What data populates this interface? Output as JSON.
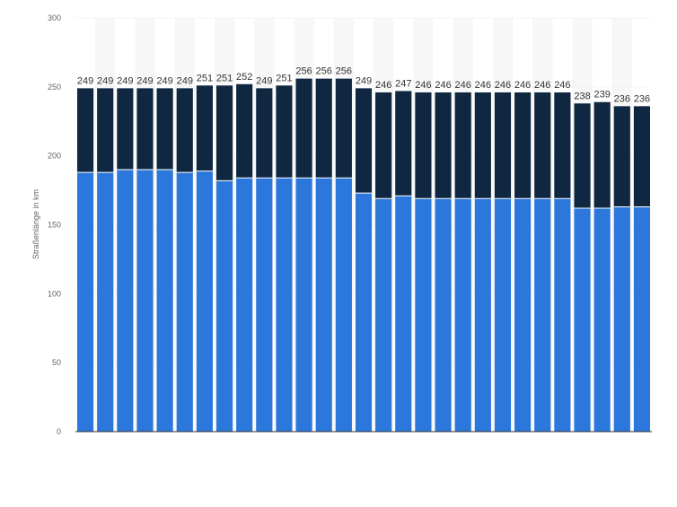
{
  "chart_data": {
    "type": "bar",
    "stacked": true,
    "title": "",
    "xlabel": "",
    "ylabel": "Straßenlänge in km",
    "ylim": [
      0,
      300
    ],
    "yticks": [
      0,
      50,
      100,
      150,
      200,
      250,
      300
    ],
    "grid": true,
    "legend": "none",
    "colors": {
      "lower": "#2b77db",
      "upper": "#0f2740",
      "band": "#f7f7f7",
      "grid": "#e6e6e6"
    },
    "series": [
      {
        "values": [
          188,
          188,
          190,
          190,
          190,
          188,
          189,
          182,
          184,
          184,
          184,
          184,
          184,
          184,
          173,
          169,
          171,
          169,
          169,
          169,
          169,
          169,
          169,
          169,
          169,
          162,
          162,
          163,
          163
        ]
      },
      {
        "values": [
          61,
          61,
          59,
          59,
          59,
          61,
          62,
          69,
          68,
          65,
          67,
          72,
          72,
          72,
          76,
          77,
          76,
          77,
          77,
          77,
          77,
          77,
          77,
          77,
          77,
          76,
          77,
          73,
          73
        ]
      }
    ],
    "totals": [
      249,
      249,
      249,
      249,
      249,
      249,
      251,
      251,
      252,
      249,
      251,
      256,
      256,
      256,
      249,
      246,
      247,
      246,
      246,
      246,
      246,
      246,
      246,
      246,
      246,
      238,
      239,
      236,
      236
    ]
  }
}
